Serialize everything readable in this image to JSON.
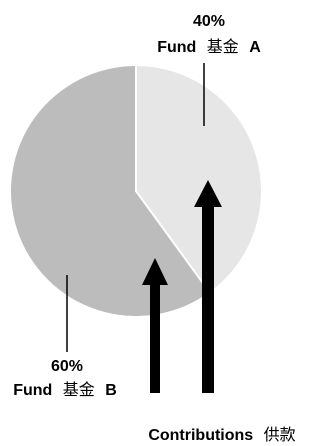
{
  "slices": [
    {
      "percent_text": "40%",
      "name_en": "Fund",
      "name_zh": "基金",
      "name_letter": "A",
      "share": 0.4,
      "color": "#e6e6e6"
    },
    {
      "percent_text": "60%",
      "name_en": "Fund",
      "name_zh": "基金",
      "name_letter": "B",
      "share": 0.6,
      "color": "#bcbcbc"
    }
  ],
  "contributions": {
    "label_en": "Contributions",
    "label_zh": "供款",
    "arrow_icon": "up-arrow-icon",
    "arrow_count": 2,
    "color": "#000000"
  }
}
